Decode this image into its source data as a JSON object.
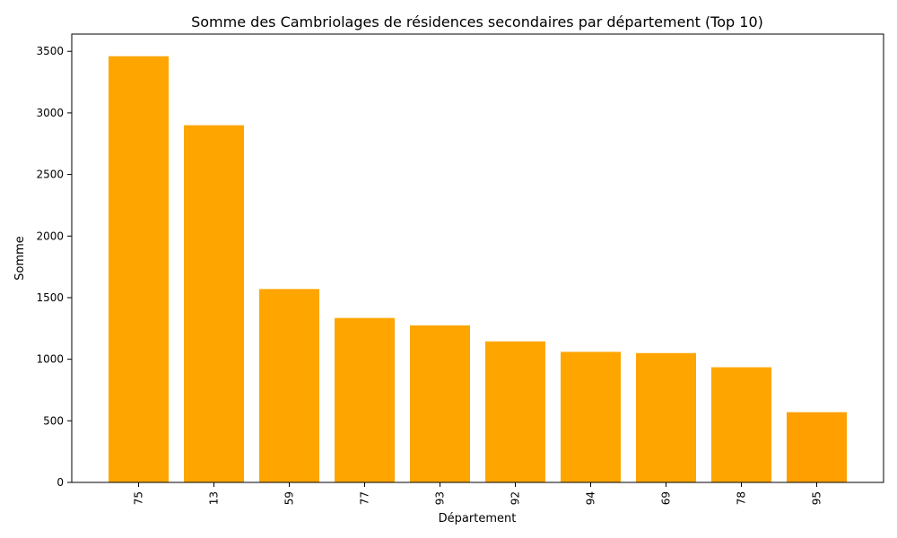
{
  "chart_data": {
    "type": "bar",
    "title": "Somme des Cambriolages de résidences secondaires par département (Top 10)",
    "xlabel": "Département",
    "ylabel": "Somme",
    "categories": [
      "75",
      "13",
      "59",
      "77",
      "93",
      "92",
      "94",
      "69",
      "78",
      "95"
    ],
    "values": [
      3460,
      2900,
      1570,
      1335,
      1275,
      1145,
      1060,
      1050,
      935,
      570
    ],
    "ylim": [
      0,
      3640
    ],
    "yticks": [
      0,
      500,
      1000,
      1500,
      2000,
      2500,
      3000,
      3500
    ],
    "xtick_rotation": "vertical",
    "grid": false,
    "legend": "none",
    "colors": {
      "bar": "#ffa500",
      "last_bar": "#ff9f00",
      "axis": "#000000"
    }
  }
}
